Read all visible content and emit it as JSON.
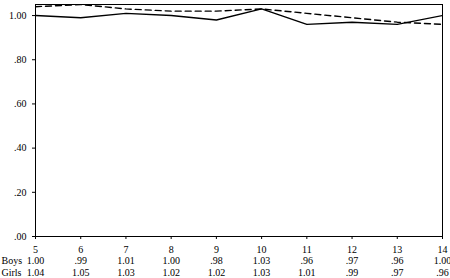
{
  "chart_data": {
    "type": "line",
    "x": [
      5,
      6,
      7,
      8,
      9,
      10,
      11,
      12,
      13,
      14
    ],
    "xlim": [
      5,
      14
    ],
    "xticks": [
      5,
      6,
      7,
      8,
      9,
      10,
      11,
      12,
      13,
      14
    ],
    "ylim": [
      0,
      1.05
    ],
    "yticks": [
      {
        "value": 0,
        "label": ".00"
      },
      {
        "value": 0.2,
        "label": ".20"
      },
      {
        "value": 0.4,
        "label": ".40"
      },
      {
        "value": 0.6,
        "label": ".60"
      },
      {
        "value": 0.8,
        "label": ".80"
      },
      {
        "value": 1,
        "label": "1.00"
      }
    ],
    "grid": false,
    "data_labels": true,
    "series": [
      {
        "name": "Boys",
        "color": "#000000",
        "line_style": "solid",
        "values": [
          1.0,
          0.99,
          1.01,
          1.0,
          0.98,
          1.03,
          0.96,
          0.97,
          0.96,
          1.0
        ],
        "value_labels": [
          "1.00",
          ".99",
          "1.01",
          "1.00",
          ".98",
          "1.03",
          ".96",
          ".97",
          ".96",
          "1.00"
        ]
      },
      {
        "name": "Girls",
        "color": "#000000",
        "line_style": "dashed",
        "values": [
          1.04,
          1.05,
          1.03,
          1.02,
          1.02,
          1.03,
          1.01,
          0.99,
          0.97,
          0.96
        ],
        "value_labels": [
          "1.04",
          "1.05",
          "1.03",
          "1.02",
          "1.02",
          "1.03",
          "1.01",
          ".99",
          ".97",
          ".96"
        ]
      }
    ]
  }
}
